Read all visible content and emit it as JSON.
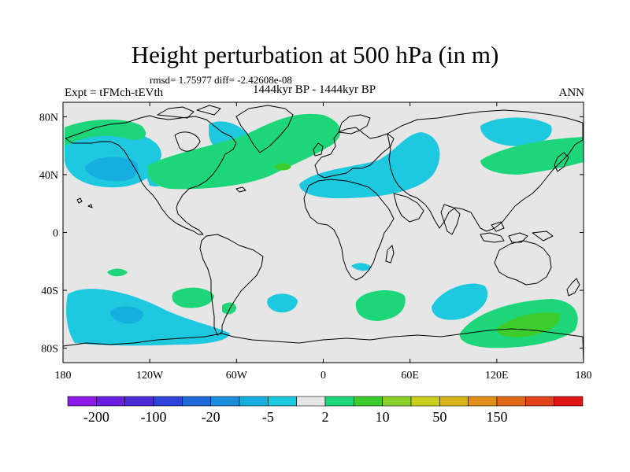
{
  "title": "Height perturbation at 500 hPa (in m)",
  "stats": "rmsd= 1.75977 diff= -2.42608e-08",
  "left_label": "Expt = tFMch-tEVth",
  "center_label": "1444kyr BP - 1444kyr BP",
  "right_label": "ANN",
  "lat_ticks": [
    {
      "value": 80,
      "label": "80N"
    },
    {
      "value": 40,
      "label": "40N"
    },
    {
      "value": 0,
      "label": "0"
    },
    {
      "value": -40,
      "label": "40S"
    },
    {
      "value": -80,
      "label": "80S"
    }
  ],
  "lon_ticks": [
    {
      "value": -180,
      "label": "180"
    },
    {
      "value": -120,
      "label": "120W"
    },
    {
      "value": -60,
      "label": "60W"
    },
    {
      "value": 0,
      "label": "0"
    },
    {
      "value": 60,
      "label": "60E"
    },
    {
      "value": 120,
      "label": "120E"
    },
    {
      "value": 180,
      "label": "180"
    }
  ],
  "map_extent": {
    "lon": [
      -180,
      180
    ],
    "lat": [
      -90,
      90
    ]
  },
  "colorbar": {
    "colors": [
      "#8b1ae6",
      "#6a1fe0",
      "#4b2ad8",
      "#2c44d8",
      "#1e6ad9",
      "#1a8edb",
      "#16aede",
      "#1ec8de",
      "#e6e6e6",
      "#1ed67a",
      "#3ccc2c",
      "#8ad22a",
      "#c8cd1e",
      "#d9b31a",
      "#e0901a",
      "#e06a1a",
      "#e0421a",
      "#e01414"
    ],
    "labels": [
      {
        "index": 1,
        "text": "-200"
      },
      {
        "index": 3,
        "text": "-100"
      },
      {
        "index": 5,
        "text": "-20"
      },
      {
        "index": 7,
        "text": "-5"
      },
      {
        "index": 9,
        "text": "2"
      },
      {
        "index": 11,
        "text": "10"
      },
      {
        "index": 13,
        "text": "50"
      },
      {
        "index": 15,
        "text": "150"
      }
    ]
  },
  "colors": {
    "background": "#e6e6e6",
    "negative": "#1ec8de",
    "negative_strong": "#16aede",
    "positive": "#1ed67a",
    "positive_strong": "#3ccc2c",
    "coast": "#000000"
  }
}
